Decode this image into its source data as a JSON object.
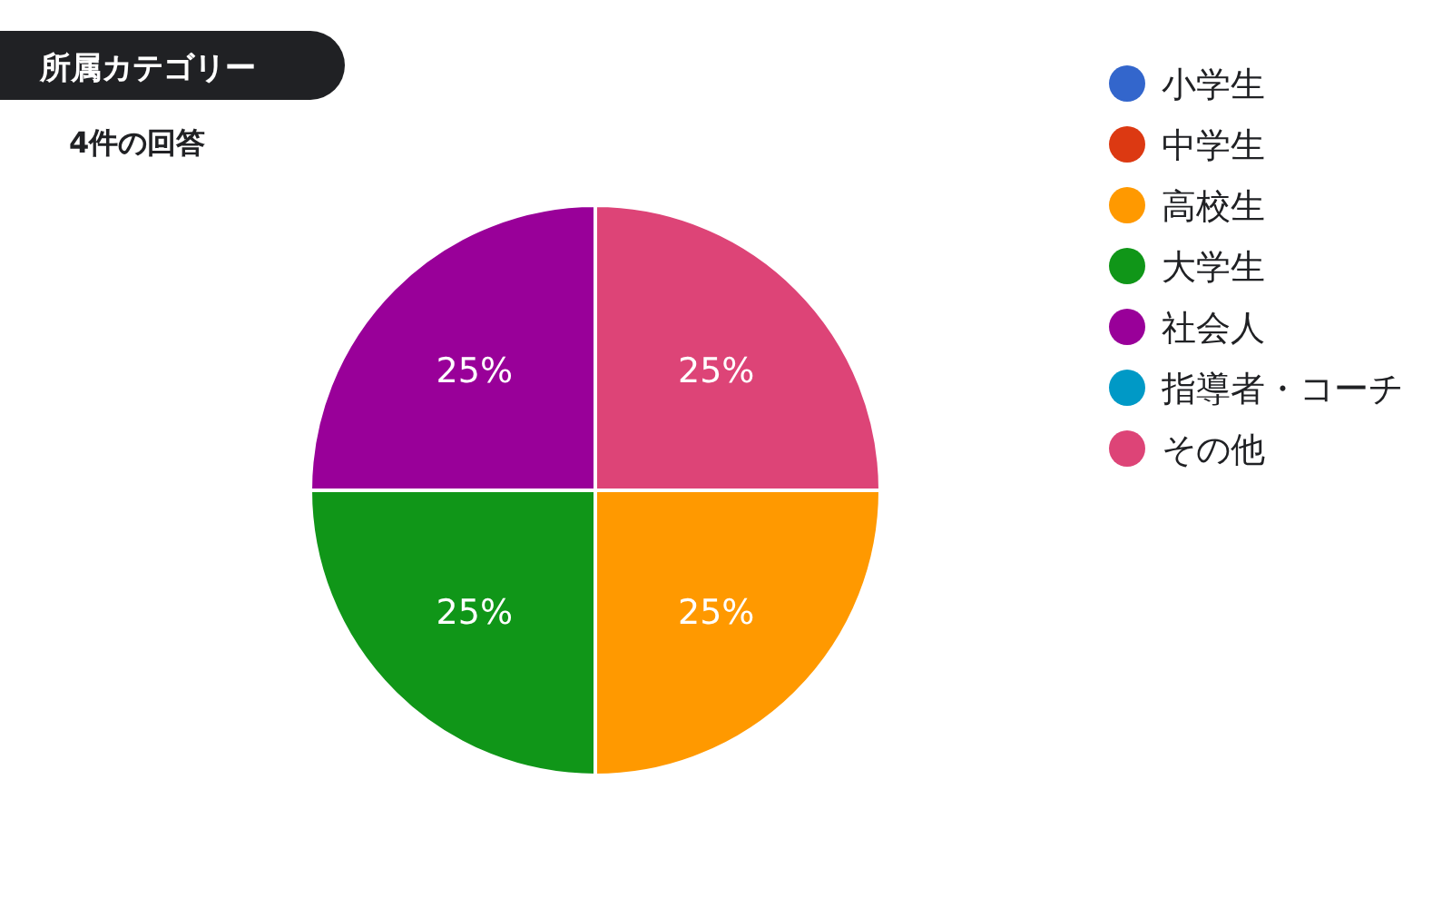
{
  "chart_data": {
    "type": "pie",
    "title": "所属カテゴリー",
    "subtitle": "4件の回答",
    "categories": [
      "小学生",
      "中学生",
      "高校生",
      "大学生",
      "社会人",
      "指導者・コーチ",
      "その他"
    ],
    "values": [
      0,
      0,
      25,
      25,
      25,
      0,
      25
    ],
    "colors": [
      "#3366cc",
      "#dc3912",
      "#ff9900",
      "#109618",
      "#990099",
      "#0099c6",
      "#dd4477"
    ],
    "value_labels": [
      null,
      null,
      "25%",
      "25%",
      "25%",
      null,
      "25%"
    ],
    "legend": "right"
  }
}
